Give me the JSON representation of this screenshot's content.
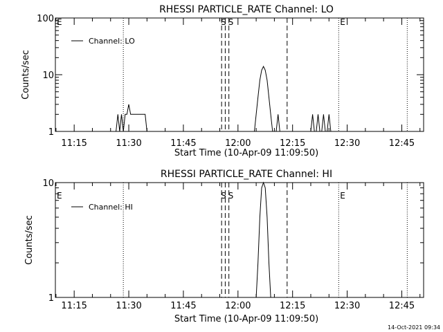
{
  "footer": {
    "timestamp": "14-Oct-2021 09:34"
  },
  "chart_data": [
    {
      "type": "line",
      "title": "RHESSI PARTICLE_RATE Channel: LO",
      "xlabel": "Start Time (10-Apr-09 11:09:50)",
      "ylabel": "Counts/sec",
      "y_scale": "log",
      "ylim": [
        1,
        100
      ],
      "y_tick_labels": [
        "1",
        "10",
        "100"
      ],
      "xlim": [
        "11:09:50",
        "12:51:00"
      ],
      "x_tick_labels": [
        "11:15",
        "11:30",
        "11:45",
        "12:00",
        "12:15",
        "12:30",
        "12:45"
      ],
      "grid": false,
      "legend": {
        "placement": "top-left",
        "entries": [
          "Channel: LO"
        ]
      },
      "series": [
        {
          "name": "Channel: LO",
          "x": [
            "11:26:30",
            "11:27:00",
            "11:27:30",
            "11:28:00",
            "11:28:30",
            "11:29:00",
            "11:29:30",
            "11:30:00",
            "11:30:30",
            "11:31:00",
            "11:31:30",
            "11:32:00",
            "11:32:30",
            "11:33:00",
            "11:33:30",
            "11:34:00",
            "11:34:30",
            "11:35:00",
            "11:35:30",
            "12:04:30",
            "12:05:00",
            "12:05:30",
            "12:06:00",
            "12:06:30",
            "12:07:00",
            "12:07:30",
            "12:08:00",
            "12:08:30",
            "12:09:00",
            "12:09:30",
            "12:10:00",
            "12:10:30",
            "12:11:00",
            "12:11:30",
            "12:12:00",
            "12:12:30",
            "12:13:00",
            "12:13:30",
            "12:14:00",
            "12:14:30",
            "12:15:00",
            "12:15:30",
            "12:16:00",
            "12:16:30",
            "12:17:00",
            "12:17:30",
            "12:18:00",
            "12:18:30",
            "12:19:00",
            "12:19:30",
            "12:20:00",
            "12:20:30",
            "12:21:00",
            "12:21:30",
            "12:22:00",
            "12:22:30",
            "12:23:00",
            "12:23:30",
            "12:24:00",
            "12:24:30",
            "12:25:00",
            "12:25:30"
          ],
          "y": [
            1,
            2,
            1,
            2,
            1,
            2,
            2,
            3,
            2,
            2,
            2,
            2,
            2,
            2,
            2,
            2,
            2,
            1,
            1,
            1,
            2,
            4,
            8,
            12,
            14,
            12,
            8,
            4,
            2,
            1,
            1,
            1,
            2,
            1,
            1,
            1,
            1,
            1,
            1,
            1,
            1,
            1,
            1,
            1,
            1,
            1,
            1,
            1,
            1,
            1,
            1,
            2,
            1,
            1,
            2,
            1,
            1,
            2,
            1,
            1,
            2,
            1
          ]
        }
      ],
      "vertical_markers": [
        {
          "time": "11:28:30",
          "style": "dotted",
          "label": ""
        },
        {
          "time": "11:55:30",
          "style": "dashed",
          "label": "S"
        },
        {
          "time": "11:56:30",
          "style": "dashed",
          "label": ""
        },
        {
          "time": "11:57:30",
          "style": "dashed",
          "label": "S"
        },
        {
          "time": "12:13:30",
          "style": "dashed",
          "label": ""
        },
        {
          "time": "12:27:40",
          "style": "dotted",
          "label": "E"
        },
        {
          "time": "12:46:30",
          "style": "dotted",
          "label": ""
        }
      ],
      "corner_label": "E"
    },
    {
      "type": "line",
      "title": "RHESSI PARTICLE_RATE Channel: HI",
      "xlabel": "Start Time (10-Apr-09 11:09:50)",
      "ylabel": "Counts/sec",
      "y_scale": "log",
      "ylim": [
        1,
        10
      ],
      "y_tick_labels": [
        "1",
        "10"
      ],
      "xlim": [
        "11:09:50",
        "12:51:00"
      ],
      "x_tick_labels": [
        "11:15",
        "11:30",
        "11:45",
        "12:00",
        "12:15",
        "12:30",
        "12:45"
      ],
      "grid": false,
      "legend": {
        "placement": "top-left",
        "entries": [
          "Channel: HI"
        ]
      },
      "series": [
        {
          "name": "Channel: HI",
          "x": [
            "12:05:00",
            "12:05:30",
            "12:06:00",
            "12:06:30",
            "12:07:00",
            "12:07:30",
            "12:08:00",
            "12:08:30",
            "12:09:00",
            "12:09:30",
            "12:10:00"
          ],
          "y": [
            1,
            2,
            5,
            9,
            10,
            9,
            5,
            2,
            1,
            1,
            1
          ]
        }
      ],
      "vertical_markers": [
        {
          "time": "11:28:30",
          "style": "dotted",
          "label": ""
        },
        {
          "time": "11:55:30",
          "style": "dashed",
          "label": "S"
        },
        {
          "time": "11:56:30",
          "style": "dashed",
          "label": ""
        },
        {
          "time": "11:57:30",
          "style": "dashed",
          "label": "S"
        },
        {
          "time": "12:13:30",
          "style": "dashed",
          "label": ""
        },
        {
          "time": "12:27:40",
          "style": "dotted",
          "label": "E"
        },
        {
          "time": "12:46:30",
          "style": "dotted",
          "label": ""
        }
      ],
      "corner_label": "E"
    }
  ]
}
